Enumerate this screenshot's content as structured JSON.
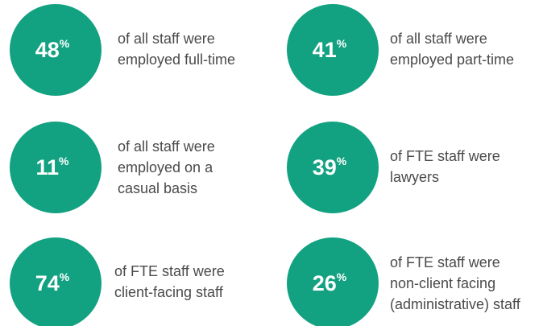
{
  "items": [
    {
      "value": 48,
      "unit": "%",
      "lines": [
        "of all staff were",
        "employed full-time"
      ]
    },
    {
      "value": 41,
      "unit": "%",
      "lines": [
        "of all staff were",
        "employed part-time"
      ]
    },
    {
      "value": 11,
      "unit": "%",
      "lines": [
        "of all staff were",
        "employed on a",
        "casual basis"
      ]
    },
    {
      "value": 39,
      "unit": "%",
      "lines": [
        "of FTE staff were",
        "lawyers"
      ]
    },
    {
      "value": 74,
      "unit": "%",
      "lines": [
        "of FTE staff were",
        "client-facing staff"
      ]
    },
    {
      "value": 26,
      "unit": "%",
      "lines": [
        "of FTE staff were",
        "non-client facing",
        "(administrative) staff"
      ]
    }
  ]
}
